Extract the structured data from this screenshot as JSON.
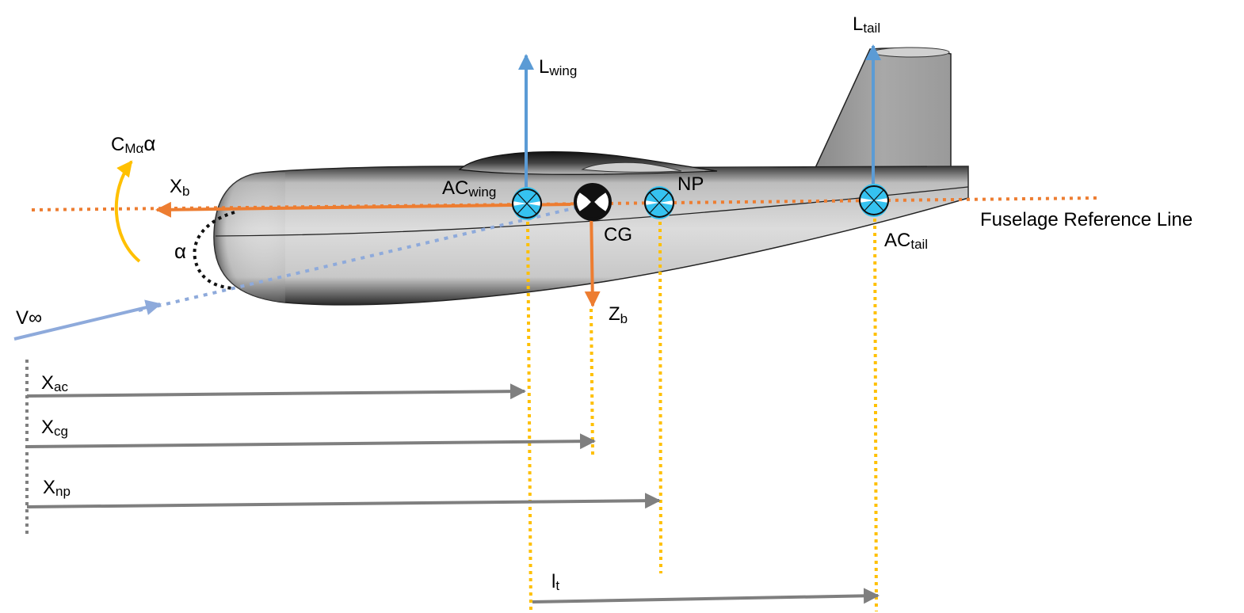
{
  "labels": {
    "l_wing": {
      "main": "L",
      "sub": "wing"
    },
    "l_tail": {
      "main": "L",
      "sub": "tail"
    },
    "c_m_alpha": {
      "main": "C",
      "sub": "Mα",
      "tail": "α"
    },
    "x_b": {
      "main": "X",
      "sub": "b"
    },
    "ac_wing": {
      "main": "AC",
      "sub": "wing"
    },
    "np": "NP",
    "cg": "CG",
    "ac_tail": {
      "main": "AC",
      "sub": "tail"
    },
    "alpha": "α",
    "v_inf": "V∞",
    "z_b": {
      "main": "Z",
      "sub": "b"
    },
    "frl": "Fuselage Reference Line",
    "x_ac": {
      "main": "X",
      "sub": "ac"
    },
    "x_cg": {
      "main": "X",
      "sub": "cg"
    },
    "x_np": {
      "main": "X",
      "sub": "np"
    },
    "l_t": {
      "main": "l",
      "sub": "t"
    }
  },
  "colors": {
    "orange": "#ED7D31",
    "blue": "#5B9BD5",
    "light_blue": "#8EAADB",
    "yellow": "#FFC000",
    "gray": "#7F7F7F",
    "cyan": "#35C2F0"
  }
}
